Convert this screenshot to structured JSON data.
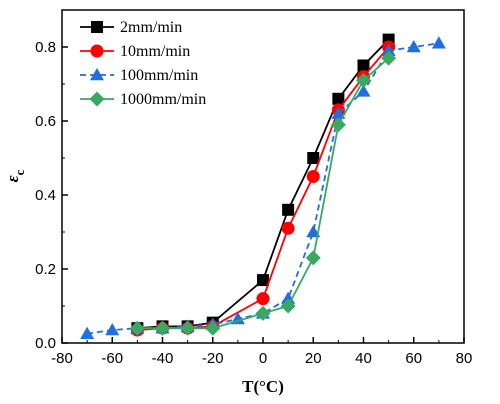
{
  "chart_data": {
    "type": "line",
    "xlabel": "T(°C)",
    "ylabel_main": "ε",
    "ylabel_sub": "c",
    "xlim": [
      -80,
      80
    ],
    "ylim": [
      0.0,
      0.9
    ],
    "xticks": [
      -80,
      -60,
      -40,
      -20,
      0,
      20,
      40,
      60,
      80
    ],
    "yticks": [
      0.0,
      0.2,
      0.4,
      0.6,
      0.8
    ],
    "legend_position": "top-left",
    "series": [
      {
        "name": "2mm/min",
        "color": "#000000",
        "marker": "square",
        "line": "solid",
        "x": [
          -50,
          -40,
          -30,
          -20,
          0,
          10,
          20,
          30,
          40,
          50
        ],
        "y": [
          0.04,
          0.045,
          0.045,
          0.055,
          0.17,
          0.36,
          0.5,
          0.66,
          0.75,
          0.82
        ]
      },
      {
        "name": "10mm/min",
        "color": "#ff0000",
        "marker": "circle",
        "line": "solid",
        "x": [
          -50,
          -40,
          -30,
          -20,
          0,
          10,
          20,
          30,
          40,
          50
        ],
        "y": [
          0.035,
          0.04,
          0.04,
          0.045,
          0.12,
          0.31,
          0.45,
          0.63,
          0.72,
          0.8
        ]
      },
      {
        "name": "100mm/min",
        "color": "#1f6fdf",
        "marker": "triangle",
        "line": "dashed",
        "x": [
          -70,
          -60,
          -50,
          -40,
          -30,
          -20,
          -10,
          0,
          10,
          20,
          30,
          40,
          50,
          60,
          70
        ],
        "y": [
          0.025,
          0.035,
          0.04,
          0.04,
          0.045,
          0.05,
          0.065,
          0.08,
          0.12,
          0.3,
          0.62,
          0.68,
          0.79,
          0.8,
          0.81
        ]
      },
      {
        "name": "1000mm/min",
        "color": "#3aa860",
        "marker": "diamond",
        "line": "solid",
        "x": [
          -50,
          -40,
          -30,
          -20,
          0,
          10,
          20,
          30,
          40,
          50
        ],
        "y": [
          0.04,
          0.04,
          0.04,
          0.04,
          0.08,
          0.1,
          0.23,
          0.59,
          0.71,
          0.77
        ]
      }
    ]
  }
}
